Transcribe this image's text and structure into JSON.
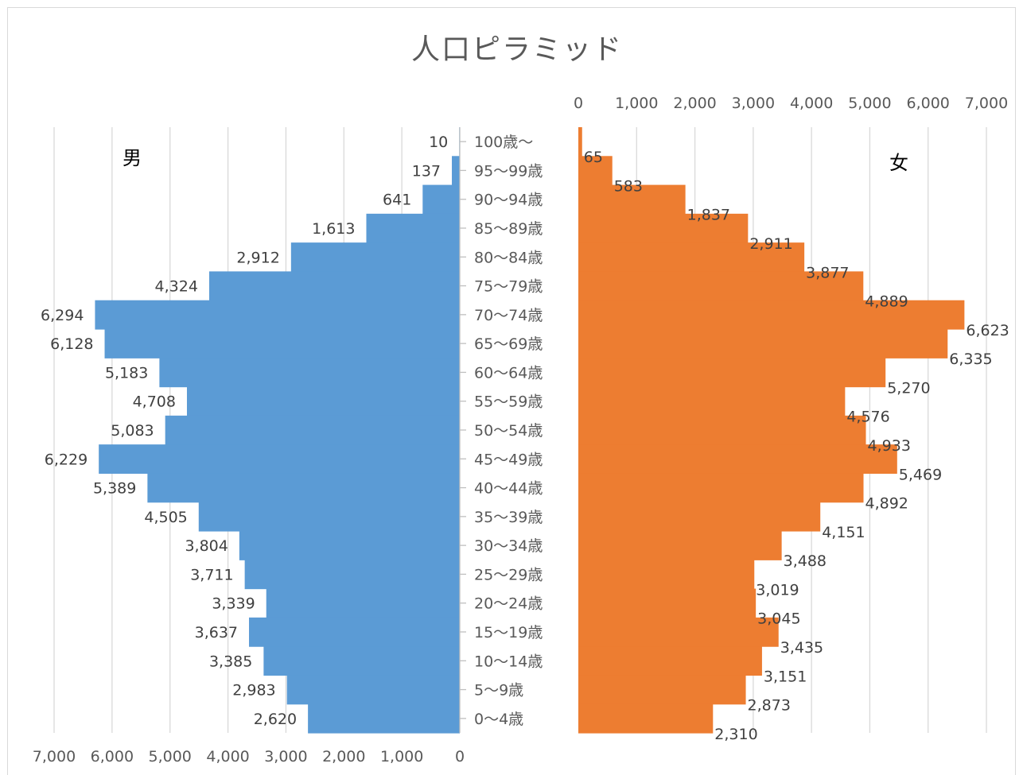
{
  "chart_data": {
    "type": "bar",
    "title": "人口ピラミッド",
    "categories": [
      "100歳～",
      "95～99歳",
      "90～94歳",
      "85～89歳",
      "80～84歳",
      "75～79歳",
      "70～74歳",
      "65～69歳",
      "60～64歳",
      "55～59歳",
      "50～54歳",
      "45～49歳",
      "40～44歳",
      "35～39歳",
      "30～34歳",
      "25～29歳",
      "20～24歳",
      "15～19歳",
      "10～14歳",
      "5～9歳",
      "0～4歳"
    ],
    "series": [
      {
        "name": "男",
        "color": "#5b9bd5",
        "values": [
          10,
          137,
          641,
          1613,
          2912,
          4324,
          6294,
          6128,
          5183,
          4708,
          5083,
          6229,
          5389,
          4505,
          3804,
          3711,
          3339,
          3637,
          3385,
          2983,
          2620
        ],
        "labels": [
          "10",
          "137",
          "641",
          "1,613",
          "2,912",
          "4,324",
          "6,294",
          "6,128",
          "5,183",
          "4,708",
          "5,083",
          "6,229",
          "5,389",
          "4,505",
          "3,804",
          "3,711",
          "3,339",
          "3,637",
          "3,385",
          "2,983",
          "2,620"
        ]
      },
      {
        "name": "女",
        "color": "#ed7d31",
        "values": [
          65,
          583,
          1837,
          2911,
          3877,
          4889,
          6623,
          6335,
          5270,
          4576,
          4933,
          5469,
          4892,
          4151,
          3488,
          3019,
          3045,
          3435,
          3151,
          2873,
          2310
        ],
        "labels": [
          "65",
          "583",
          "1,837",
          "2,911",
          "3,877",
          "4,889",
          "6,623",
          "6,335",
          "5,270",
          "4,576",
          "4,933",
          "5,469",
          "4,892",
          "4,151",
          "3,488",
          "3,019",
          "3,045",
          "3,435",
          "3,151",
          "2,873",
          "2,310"
        ]
      }
    ],
    "axis_range": [
      0,
      7000
    ],
    "axis_ticks": [
      0,
      1000,
      2000,
      3000,
      4000,
      5000,
      6000,
      7000
    ],
    "axis_tick_labels": [
      "0",
      "1,000",
      "2,000",
      "3,000",
      "4,000",
      "5,000",
      "6,000",
      "7,000"
    ],
    "male_axis_reversed": true,
    "male_axis_position": "bottom",
    "female_axis_position": "top",
    "grid": true,
    "bar_gap": 0
  }
}
